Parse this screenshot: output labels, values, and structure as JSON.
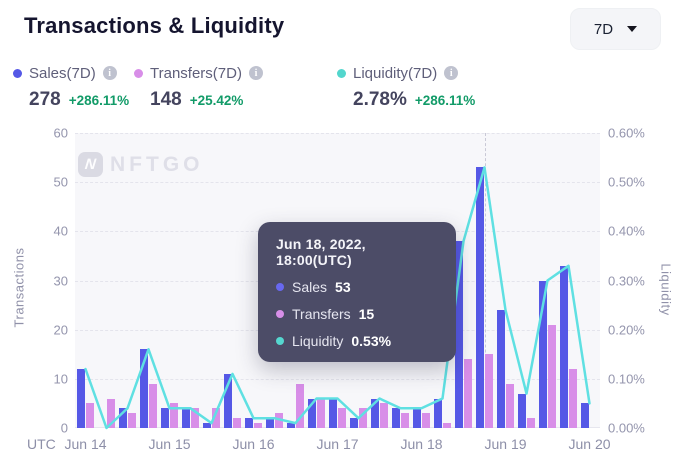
{
  "header": {
    "title": "Transactions & Liquidity",
    "range_selector": {
      "value": "7D"
    }
  },
  "metrics": [
    {
      "label": "Sales(7D)",
      "value": "278",
      "change": "+286.11%",
      "color": "#5558e6"
    },
    {
      "label": "Transfers(7D)",
      "value": "148",
      "change": "+25.42%",
      "color": "#d88ee8"
    },
    {
      "label": "Liquidity(7D)",
      "value": "2.78%",
      "change": "+286.11%",
      "color": "#53d6cd"
    }
  ],
  "tooltip": {
    "title": "Jun 18, 2022, 18:00(UTC)",
    "rows": [
      {
        "label": "Sales",
        "value": "53",
        "color": "#6868f0"
      },
      {
        "label": "Transfers",
        "value": "15",
        "color": "#d78fe8"
      },
      {
        "label": "Liquidity",
        "value": "0.53%",
        "color": "#55d7cf"
      }
    ]
  },
  "watermark": {
    "icon_letter": "N",
    "text": "NFTGO"
  },
  "chart_data": {
    "type": "bar",
    "x": [
      "Jun 14 00:00",
      "Jun 14 06:00",
      "Jun 14 12:00",
      "Jun 14 18:00",
      "Jun 15 00:00",
      "Jun 15 06:00",
      "Jun 15 12:00",
      "Jun 15 18:00",
      "Jun 16 00:00",
      "Jun 16 06:00",
      "Jun 16 12:00",
      "Jun 16 18:00",
      "Jun 17 00:00",
      "Jun 17 06:00",
      "Jun 17 12:00",
      "Jun 17 18:00",
      "Jun 18 00:00",
      "Jun 18 06:00",
      "Jun 18 12:00",
      "Jun 18 18:00",
      "Jun 19 00:00",
      "Jun 19 06:00",
      "Jun 19 12:00",
      "Jun 19 18:00",
      "Jun 20 00:00"
    ],
    "x_tick_labels": [
      "Jun 14",
      "Jun 15",
      "Jun 16",
      "Jun 17",
      "Jun 18",
      "Jun 19",
      "Jun 20"
    ],
    "x_tick_indices": [
      0,
      4,
      8,
      12,
      16,
      20,
      24
    ],
    "x_axis_prefix": "UTC",
    "series": [
      {
        "name": "Sales",
        "type": "bar",
        "axis": "left",
        "color": "#5558e6",
        "values": [
          12,
          0,
          4,
          16,
          4,
          4,
          1,
          11,
          2,
          2,
          1,
          6,
          6,
          2,
          6,
          4,
          4,
          6,
          38,
          53,
          24,
          7,
          30,
          33,
          5
        ]
      },
      {
        "name": "Transfers",
        "type": "bar",
        "axis": "left",
        "color": "#d88ee8",
        "values": [
          5,
          6,
          3,
          9,
          5,
          4,
          4,
          2,
          1,
          3,
          9,
          6,
          4,
          4,
          5,
          3,
          3,
          1,
          14,
          15,
          9,
          2,
          21,
          12,
          0
        ]
      },
      {
        "name": "Liquidity",
        "type": "line",
        "axis": "right",
        "color": "#5fe0e2",
        "values": [
          0.12,
          0.0,
          0.04,
          0.16,
          0.04,
          0.04,
          0.01,
          0.11,
          0.02,
          0.02,
          0.01,
          0.06,
          0.06,
          0.02,
          0.06,
          0.04,
          0.04,
          0.06,
          0.38,
          0.53,
          0.24,
          0.07,
          0.3,
          0.33,
          0.05
        ]
      }
    ],
    "y_left": {
      "label": "Transactions",
      "min": 0,
      "max": 60,
      "ticks": [
        "60",
        "50",
        "40",
        "30",
        "20",
        "10",
        "0"
      ]
    },
    "y_right": {
      "label": "Liquidity",
      "min": 0,
      "max": 0.6,
      "ticks": [
        "0.60%",
        "0.50%",
        "0.40%",
        "0.30%",
        "0.20%",
        "0.10%",
        "0.00%"
      ]
    },
    "highlight_index": 19,
    "grid": "dashed-horizontal",
    "legend_position": "top-left"
  }
}
